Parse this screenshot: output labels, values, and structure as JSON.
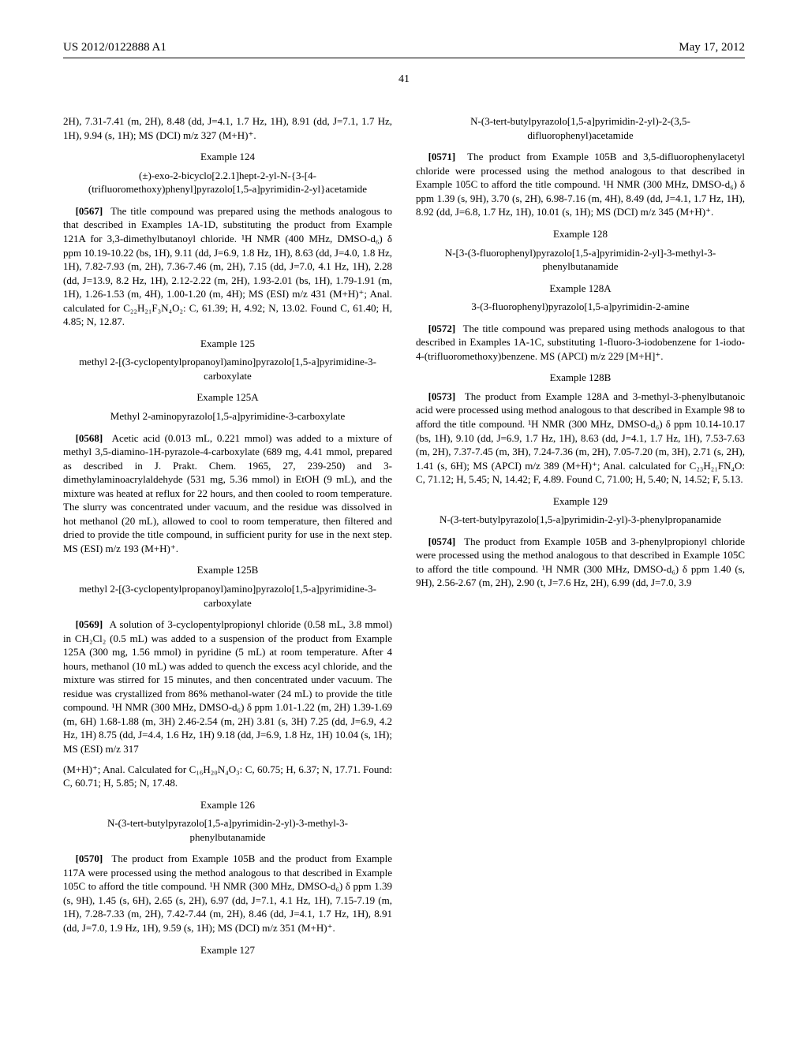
{
  "header": {
    "left": "US 2012/0122888 A1",
    "right": "May 17, 2012"
  },
  "pagenum": "41",
  "col1": {
    "frag1": "2H), 7.31-7.41 (m, 2H), 8.48 (dd, J=4.1, 1.7 Hz, 1H), 8.91 (dd, J=7.1, 1.7 Hz, 1H), 9.94 (s, 1H); MS (DCI) m/z 327 (M+H)⁺.",
    "ex124": {
      "head": "Example 124",
      "title": "(±)-exo-2-bicyclo[2.2.1]hept-2-yl-N-{3-[4-(trifluoromethoxy)phenyl]pyrazolo[1,5-a]pyrimidin-2-yl}acetamide"
    },
    "p0567_num": "[0567]",
    "p0567": "The title compound was prepared using the methods analogous to that described in Examples 1A-1D, substituting the product from Example 121A for 3,3-dimethylbutanoyl chloride. ¹H NMR (400 MHz, DMSO-d₆) δ ppm 10.19-10.22 (bs, 1H), 9.11 (dd, J=6.9, 1.8 Hz, 1H), 8.63 (dd, J=4.0, 1.8 Hz, 1H), 7.82-7.93 (m, 2H), 7.36-7.46 (m, 2H), 7.15 (dd, J=7.0, 4.1 Hz, 1H), 2.28 (dd, J=13.9, 8.2 Hz, 1H), 2.12-2.22 (m, 2H), 1.93-2.01 (bs, 1H), 1.79-1.91 (m, 1H), 1.26-1.53 (m, 4H), 1.00-1.20 (m, 4H); MS (ESI) m/z 431 (M+H)⁺; Anal. calculated for C₂₂H₂₁F₃N₄O₂: C, 61.39; H, 4.92; N, 13.02. Found C, 61.40; H, 4.85; N, 12.87.",
    "ex125": {
      "head": "Example 125",
      "title": "methyl 2-[(3-cyclopentylpropanoyl)amino]pyrazolo[1,5-a]pyrimidine-3-carboxylate"
    },
    "ex125A": {
      "head": "Example 125A",
      "title": "Methyl 2-aminopyrazolo[1,5-a]pyrimidine-3-carboxylate"
    },
    "p0568_num": "[0568]",
    "p0568": "Acetic acid (0.013 mL, 0.221 mmol) was added to a mixture of methyl 3,5-diamino-1H-pyrazole-4-carboxylate (689 mg, 4.41 mmol, prepared as described in J. Prakt. Chem. 1965, 27, 239-250) and 3-dimethylaminoacrylaldehyde (531 mg, 5.36 mmol) in EtOH (9 mL), and the mixture was heated at reflux for 22 hours, and then cooled to room temperature. The slurry was concentrated under vacuum, and the residue was dissolved in hot methanol (20 mL), allowed to cool to room temperature, then filtered and dried to provide the title compound, in sufficient purity for use in the next step. MS (ESI) m/z 193 (M+H)⁺.",
    "ex125B": {
      "head": "Example 125B",
      "title": "methyl 2-[(3-cyclopentylpropanoyl)amino]pyrazolo[1,5-a]pyrimidine-3-carboxylate"
    },
    "p0569_num": "[0569]",
    "p0569": "A solution of 3-cyclopentylpropionyl chloride (0.58 mL, 3.8 mmol) in CH₂Cl₂ (0.5 mL) was added to a suspension of the product from Example 125A (300 mg, 1.56 mmol) in pyridine (5 mL) at room temperature. After 4 hours, methanol (10 mL) was added to quench the excess acyl chloride, and the mixture was stirred for 15 minutes, and then concentrated under vacuum. The residue was crystallized from 86% methanol-water (24 mL) to provide the title compound. ¹H NMR (300 MHz, DMSO-d₆) δ ppm 1.01-1.22 (m, 2H) 1.39-1.69 (m, 6H) 1.68-1.88 (m, 3H) 2.46-2.54 (m, 2H) 3.81 (s, 3H) 7.25 (dd, J=6.9, 4.2 Hz, 1H) 8.75 (dd, J=4.4, 1.6 Hz, 1H) 9.18 (dd, J=6.9, 1.8 Hz, 1H) 10.04 (s, 1H); MS (ESI) m/z 317"
  },
  "col2": {
    "frag2": "(M+H)⁺; Anal. Calculated for C₁₆H₂₀N₄O₃: C, 60.75; H, 6.37; N, 17.71. Found: C, 60.71; H, 5.85; N, 17.48.",
    "ex126": {
      "head": "Example 126",
      "title": "N-(3-tert-butylpyrazolo[1,5-a]pyrimidin-2-yl)-3-methyl-3-phenylbutanamide"
    },
    "p0570_num": "[0570]",
    "p0570": "The product from Example 105B and the product from Example 117A were processed using the method analogous to that described in Example 105C to afford the title compound. ¹H NMR (300 MHz, DMSO-d₆) δ ppm 1.39 (s, 9H), 1.45 (s, 6H), 2.65 (s, 2H), 6.97 (dd, J=7.1, 4.1 Hz, 1H), 7.15-7.19 (m, 1H), 7.28-7.33 (m, 2H), 7.42-7.44 (m, 2H), 8.46 (dd, J=4.1, 1.7 Hz, 1H), 8.91 (dd, J=7.0, 1.9 Hz, 1H), 9.59 (s, 1H); MS (DCI) m/z 351 (M+H)⁺.",
    "ex127": {
      "head": "Example 127",
      "title": "N-(3-tert-butylpyrazolo[1,5-a]pyrimidin-2-yl)-2-(3,5-difluorophenyl)acetamide"
    },
    "p0571_num": "[0571]",
    "p0571": "The product from Example 105B and 3,5-difluorophenylacetyl chloride were processed using the method analogous to that described in Example 105C to afford the title compound. ¹H NMR (300 MHz, DMSO-d₆) δ ppm 1.39 (s, 9H), 3.70 (s, 2H), 6.98-7.16 (m, 4H), 8.49 (dd, J=4.1, 1.7 Hz, 1H), 8.92 (dd, J=6.8, 1.7 Hz, 1H), 10.01 (s, 1H); MS (DCI) m/z 345 (M+H)⁺.",
    "ex128": {
      "head": "Example 128",
      "title": "N-[3-(3-fluorophenyl)pyrazolo[1,5-a]pyrimidin-2-yl]-3-methyl-3-phenylbutanamide"
    },
    "ex128A": {
      "head": "Example 128A",
      "title": "3-(3-fluorophenyl)pyrazolo[1,5-a]pyrimidin-2-amine"
    },
    "p0572_num": "[0572]",
    "p0572": "The title compound was prepared using methods analogous to that described in Examples 1A-1C, substituting 1-fluoro-3-iodobenzene for 1-iodo-4-(trifluoromethoxy)benzene. MS (APCI) m/z 229 [M+H]⁺.",
    "ex128B": {
      "head": "Example 128B"
    },
    "p0573_num": "[0573]",
    "p0573": "The product from Example 128A and 3-methyl-3-phenylbutanoic acid were processed using method analogous to that described in Example 98 to afford the title compound. ¹H NMR (300 MHz, DMSO-d₆) δ ppm 10.14-10.17 (bs, 1H), 9.10 (dd, J=6.9, 1.7 Hz, 1H), 8.63 (dd, J=4.1, 1.7 Hz, 1H), 7.53-7.63 (m, 2H), 7.37-7.45 (m, 3H), 7.24-7.36 (m, 2H), 7.05-7.20 (m, 3H), 2.71 (s, 2H), 1.41 (s, 6H); MS (APCI) m/z 389 (M+H)⁺; Anal. calculated for C₂₃H₂₁FN₄O: C, 71.12; H, 5.45; N, 14.42; F, 4.89. Found C, 71.00; H, 5.40; N, 14.52; F, 5.13.",
    "ex129": {
      "head": "Example 129",
      "title": "N-(3-tert-butylpyrazolo[1,5-a]pyrimidin-2-yl)-3-phenylpropanamide"
    },
    "p0574_num": "[0574]",
    "p0574": "The product from Example 105B and 3-phenylpropionyl chloride were processed using the method analogous to that described in Example 105C to afford the title compound. ¹H NMR (300 MHz, DMSO-d₆) δ ppm 1.40 (s, 9H), 2.56-2.67 (m, 2H), 2.90 (t, J=7.6 Hz, 2H), 6.99 (dd, J=7.0, 3.9"
  }
}
